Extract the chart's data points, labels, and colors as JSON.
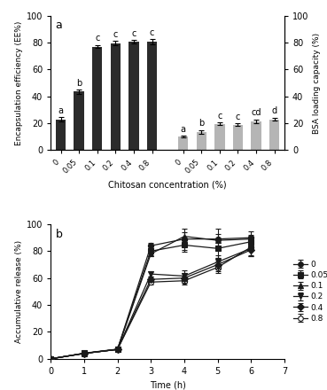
{
  "bar_categories": [
    "0",
    "0.05",
    "0.1",
    "0.2",
    "0.4",
    "0.8"
  ],
  "EE_values": [
    23.0,
    43.5,
    77.0,
    79.5,
    80.5,
    80.5
  ],
  "EE_errors": [
    1.5,
    1.5,
    1.2,
    1.5,
    1.5,
    1.8
  ],
  "EE_labels": [
    "a",
    "b",
    "c",
    "c",
    "c",
    "c"
  ],
  "LC_values": [
    10.0,
    13.5,
    19.5,
    19.0,
    21.5,
    23.0
  ],
  "LC_errors": [
    0.8,
    1.5,
    1.0,
    1.0,
    1.5,
    1.2
  ],
  "LC_labels": [
    "a",
    "b",
    "c",
    "c",
    "cd",
    "d"
  ],
  "EE_color": "#2b2b2b",
  "LC_color": "#b5b5b5",
  "bar_width": 0.55,
  "ylim_bar": [
    0,
    100
  ],
  "ylabel_left": "Encapsulation efficiency (EE%)",
  "ylabel_right": "BSA loading capacity (%)",
  "xlabel_bar": "Chitosan concentration (%)",
  "panel_a_label": "a",
  "line_time": [
    0,
    1,
    2,
    3,
    4,
    5,
    6
  ],
  "line_data": {
    "0": {
      "y": [
        0,
        4.0,
        7.0,
        84.0,
        89.0,
        89.0,
        90.0
      ],
      "yerr": [
        0,
        0.5,
        0.5,
        2.0,
        8.0,
        8.0,
        5.0
      ]
    },
    "0.05": {
      "y": [
        0,
        4.2,
        7.2,
        80.0,
        84.5,
        82.0,
        87.0
      ],
      "yerr": [
        0,
        0.5,
        0.5,
        2.0,
        5.0,
        7.0,
        4.0
      ]
    },
    "0.1": {
      "y": [
        0,
        4.0,
        7.0,
        78.0,
        91.0,
        88.0,
        89.0
      ],
      "yerr": [
        0,
        0.5,
        0.5,
        1.5,
        3.0,
        5.0,
        3.0
      ]
    },
    "0.2": {
      "y": [
        0,
        4.0,
        7.0,
        63.0,
        61.5,
        72.0,
        82.0
      ],
      "yerr": [
        0,
        0.5,
        0.5,
        2.0,
        4.0,
        5.0,
        6.0
      ]
    },
    "0.4": {
      "y": [
        0,
        4.0,
        7.0,
        59.0,
        60.0,
        70.0,
        81.0
      ],
      "yerr": [
        0,
        0.5,
        0.5,
        2.0,
        3.5,
        5.0,
        5.0
      ]
    },
    "0.8": {
      "y": [
        0,
        4.0,
        7.0,
        57.0,
        58.0,
        68.0,
        83.0
      ],
      "yerr": [
        0,
        0.5,
        0.5,
        2.0,
        3.0,
        4.5,
        6.0
      ]
    }
  },
  "line_labels": [
    "0",
    "0.05",
    "0.1",
    "0.2",
    "0.4",
    "0.8"
  ],
  "line_markers": [
    "o",
    "s",
    "^",
    "v",
    "D",
    "o"
  ],
  "line_fillstyles": [
    "full",
    "full",
    "full",
    "full",
    "full",
    "none"
  ],
  "line_color": "#1a1a1a",
  "ylim_line": [
    0,
    100
  ],
  "xlabel_line": "Time (h)",
  "ylabel_line": "Accumulative release (%)",
  "panel_b_label": "b",
  "xlim_line": [
    0,
    7
  ],
  "xticks_line": [
    0,
    1,
    2,
    3,
    4,
    5,
    6,
    7
  ]
}
